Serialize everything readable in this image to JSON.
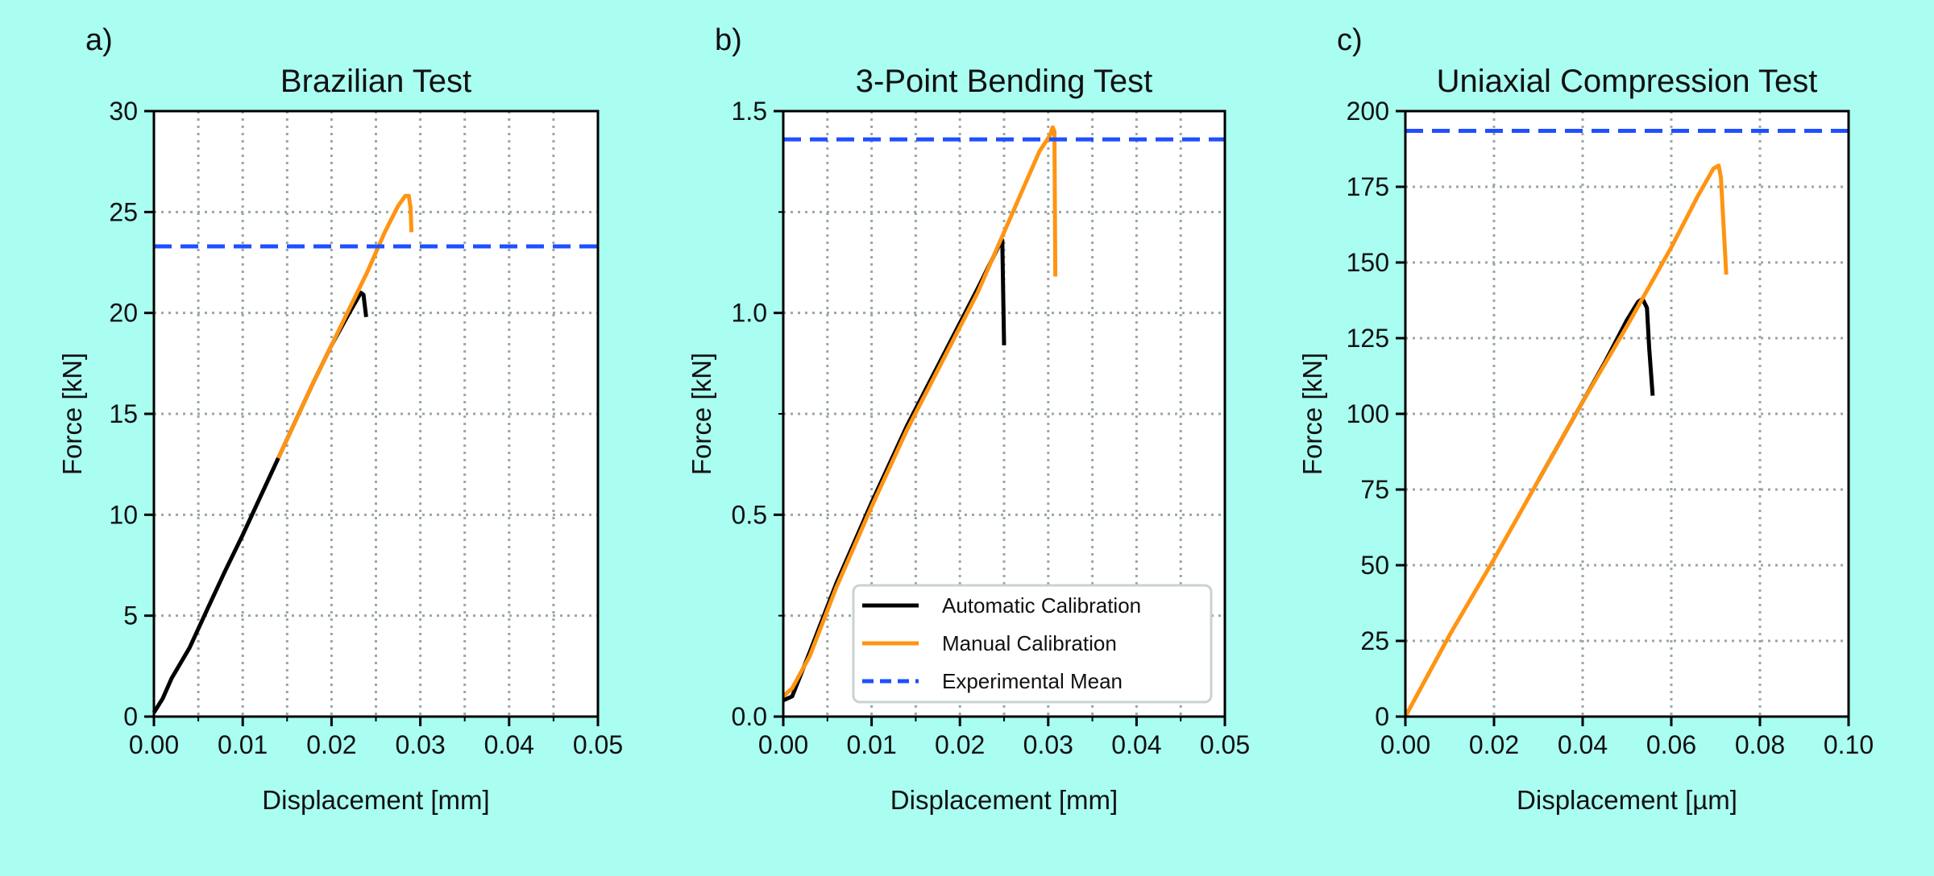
{
  "background": "#a9fdf1",
  "colors": {
    "automatic": "#000000",
    "manual": "#ff9412",
    "mean": "#1f4fff",
    "grid": "#9aa7a4"
  },
  "legend": {
    "placement": "lower-right of panel b",
    "items": [
      {
        "label": "Automatic Calibration",
        "style": "solid",
        "color": "#000000"
      },
      {
        "label": "Manual Calibration",
        "style": "solid",
        "color": "#ff9412"
      },
      {
        "label": "Experimental Mean",
        "style": "dashed",
        "color": "#1f4fff"
      }
    ]
  },
  "chart_data": [
    {
      "type": "line",
      "panel_label": "a)",
      "title": "Brazilian Test",
      "xlabel": "Displacement [mm]",
      "ylabel": "Force [kN]",
      "xlim": [
        0,
        0.05
      ],
      "ylim": [
        0,
        30
      ],
      "xticks": [
        "0.00",
        "0.01",
        "0.02",
        "0.03",
        "0.04",
        "0.05"
      ],
      "xtick_values": [
        0,
        0.01,
        0.02,
        0.03,
        0.04,
        0.05
      ],
      "yticks": [
        "0",
        "5",
        "10",
        "15",
        "20",
        "25",
        "30"
      ],
      "ytick_values": [
        0,
        5,
        10,
        15,
        20,
        25,
        30
      ],
      "xgrid_step": 0.005,
      "ygrid_step": 5,
      "xminor": 0.005,
      "yminor": null,
      "grid": true,
      "series": [
        {
          "name": "Automatic Calibration",
          "color": "#000000",
          "points": [
            [
              0,
              0.2
            ],
            [
              0.001,
              0.9
            ],
            [
              0.002,
              1.9
            ],
            [
              0.004,
              3.4
            ],
            [
              0.006,
              5.3
            ],
            [
              0.008,
              7.2
            ],
            [
              0.01,
              9.0
            ],
            [
              0.012,
              10.9
            ],
            [
              0.014,
              12.8
            ],
            [
              0.016,
              14.7
            ],
            [
              0.018,
              16.6
            ],
            [
              0.02,
              18.4
            ],
            [
              0.022,
              20.0
            ],
            [
              0.0233,
              21.0
            ],
            [
              0.0236,
              20.9
            ],
            [
              0.0239,
              19.8
            ]
          ]
        },
        {
          "name": "Manual Calibration",
          "color": "#ff9412",
          "points": [
            [
              0.014,
              12.8
            ],
            [
              0.018,
              16.6
            ],
            [
              0.022,
              20.2
            ],
            [
              0.024,
              22.0
            ],
            [
              0.026,
              24.0
            ],
            [
              0.0275,
              25.3
            ],
            [
              0.0283,
              25.8
            ],
            [
              0.0287,
              25.8
            ],
            [
              0.0289,
              25.2
            ],
            [
              0.029,
              24.0
            ]
          ]
        },
        {
          "name": "Experimental Mean",
          "color": "#1f4fff",
          "hline": 23.3
        }
      ]
    },
    {
      "type": "line",
      "panel_label": "b)",
      "title": "3-Point Bending Test",
      "xlabel": "Displacement [mm]",
      "ylabel": "Force [kN]",
      "xlim": [
        0,
        0.05
      ],
      "ylim": [
        0,
        1.5
      ],
      "xticks": [
        "0.00",
        "0.01",
        "0.02",
        "0.03",
        "0.04",
        "0.05"
      ],
      "xtick_values": [
        0,
        0.01,
        0.02,
        0.03,
        0.04,
        0.05
      ],
      "yticks": [
        "0.0",
        "0.5",
        "1.0",
        "1.5"
      ],
      "ytick_values": [
        0,
        0.5,
        1.0,
        1.5
      ],
      "xgrid_step": 0.005,
      "ygrid_step": 0.25,
      "xminor": 0.005,
      "yminor": 0.25,
      "grid": true,
      "series": [
        {
          "name": "Automatic Calibration",
          "color": "#000000",
          "points": [
            [
              0,
              0.04
            ],
            [
              0.001,
              0.05
            ],
            [
              0.003,
              0.16
            ],
            [
              0.006,
              0.33
            ],
            [
              0.01,
              0.53
            ],
            [
              0.014,
              0.72
            ],
            [
              0.018,
              0.89
            ],
            [
              0.022,
              1.06
            ],
            [
              0.0245,
              1.17
            ],
            [
              0.0248,
              1.18
            ],
            [
              0.025,
              0.92
            ]
          ]
        },
        {
          "name": "Manual Calibration",
          "color": "#ff9412",
          "points": [
            [
              0,
              0.05
            ],
            [
              0.001,
              0.07
            ],
            [
              0.003,
              0.15
            ],
            [
              0.006,
              0.32
            ],
            [
              0.01,
              0.52
            ],
            [
              0.014,
              0.71
            ],
            [
              0.018,
              0.88
            ],
            [
              0.022,
              1.05
            ],
            [
              0.025,
              1.2
            ],
            [
              0.027,
              1.3
            ],
            [
              0.029,
              1.4
            ],
            [
              0.0302,
              1.44
            ],
            [
              0.0305,
              1.46
            ],
            [
              0.0307,
              1.45
            ],
            [
              0.0308,
              1.09
            ]
          ]
        },
        {
          "name": "Experimental Mean",
          "color": "#1f4fff",
          "hline": 1.43
        }
      ]
    },
    {
      "type": "line",
      "panel_label": "c)",
      "title": "Uniaxial Compression Test",
      "xlabel": "Displacement [µm]",
      "ylabel": "Force [kN]",
      "xlim": [
        0,
        0.1
      ],
      "ylim": [
        0,
        200
      ],
      "xticks": [
        "0.00",
        "0.02",
        "0.04",
        "0.06",
        "0.08",
        "0.10"
      ],
      "xtick_values": [
        0,
        0.02,
        0.04,
        0.06,
        0.08,
        0.1
      ],
      "yticks": [
        "0",
        "25",
        "50",
        "75",
        "100",
        "125",
        "150",
        "175",
        "200"
      ],
      "ytick_values": [
        0,
        25,
        50,
        75,
        100,
        125,
        150,
        175,
        200
      ],
      "xgrid_step": 0.02,
      "ygrid_step": 25,
      "xminor": null,
      "yminor": null,
      "grid": true,
      "series": [
        {
          "name": "Automatic Calibration",
          "color": "#000000",
          "points": [
            [
              0.03,
              78
            ],
            [
              0.04,
              104
            ],
            [
              0.045,
              117
            ],
            [
              0.05,
              131
            ],
            [
              0.0525,
              137
            ],
            [
              0.0535,
              138
            ],
            [
              0.0545,
              135
            ],
            [
              0.055,
              122
            ],
            [
              0.0558,
              106
            ]
          ]
        },
        {
          "name": "Manual Calibration",
          "color": "#ff9412",
          "points": [
            [
              0,
              0
            ],
            [
              0.01,
              27
            ],
            [
              0.02,
              52
            ],
            [
              0.03,
              78
            ],
            [
              0.04,
              104
            ],
            [
              0.05,
              129
            ],
            [
              0.06,
              155
            ],
            [
              0.066,
              172
            ],
            [
              0.0695,
              181
            ],
            [
              0.0707,
              182
            ],
            [
              0.0712,
              178
            ],
            [
              0.0724,
              146
            ]
          ]
        },
        {
          "name": "Experimental Mean",
          "color": "#1f4fff",
          "hline": 193.5
        }
      ]
    }
  ]
}
